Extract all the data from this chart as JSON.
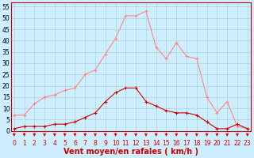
{
  "x": [
    0,
    1,
    2,
    3,
    4,
    5,
    6,
    7,
    8,
    9,
    10,
    11,
    12,
    13,
    14,
    15,
    16,
    17,
    18,
    19,
    20,
    21,
    22,
    23
  ],
  "wind_avg": [
    1,
    2,
    2,
    2,
    3,
    3,
    4,
    6,
    8,
    13,
    17,
    19,
    19,
    13,
    11,
    9,
    8,
    8,
    7,
    4,
    1,
    1,
    3,
    1
  ],
  "wind_gust": [
    7,
    7,
    12,
    15,
    16,
    18,
    19,
    25,
    27,
    34,
    41,
    51,
    51,
    53,
    37,
    32,
    39,
    33,
    32,
    15,
    8,
    13,
    2,
    1
  ],
  "bg_color": "#cceeff",
  "grid_color": "#aacccc",
  "line_color_avg": "#cc0000",
  "line_color_gust": "#ff8888",
  "xlabel": "Vent moyen/en rafales ( km/h )",
  "ylim": [
    0,
    57
  ],
  "yticks": [
    0,
    5,
    10,
    15,
    20,
    25,
    30,
    35,
    40,
    45,
    50,
    55
  ],
  "xticks": [
    0,
    1,
    2,
    3,
    4,
    5,
    6,
    7,
    8,
    9,
    10,
    11,
    12,
    13,
    14,
    15,
    16,
    17,
    18,
    19,
    20,
    21,
    22,
    23
  ],
  "tick_fontsize": 5.5,
  "xlabel_fontsize": 7.0
}
